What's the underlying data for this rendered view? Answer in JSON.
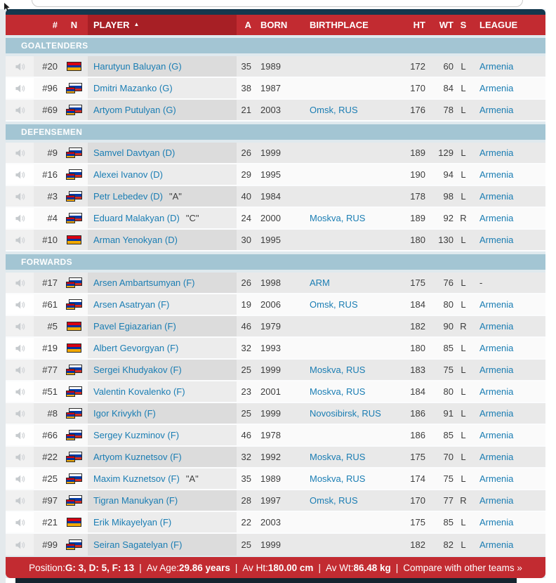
{
  "colors": {
    "header_red": "#c22b31",
    "sorted_red": "#a71f25",
    "navy": "#14384e",
    "section_blue": "#a3c5d3",
    "link_blue": "#1a7db3",
    "flag_armenia": [
      "#d90012",
      "#0033a0",
      "#f2a800"
    ],
    "flag_russia": [
      "#ffffff",
      "#0039a6",
      "#d52b1e"
    ]
  },
  "table": {
    "sort_arrow": "▲",
    "columns": [
      {
        "key": "audio",
        "label": "",
        "sorted": false,
        "interactable": false
      },
      {
        "key": "jersey",
        "label": "#",
        "sorted": false,
        "interactable": true
      },
      {
        "key": "flag",
        "label": "N",
        "sorted": false,
        "interactable": true
      },
      {
        "key": "player",
        "label": "PLAYER",
        "sorted": true,
        "interactable": true
      },
      {
        "key": "age",
        "label": "A",
        "sorted": false,
        "interactable": true
      },
      {
        "key": "born",
        "label": "BORN",
        "sorted": false,
        "interactable": true
      },
      {
        "key": "birthplace",
        "label": "BIRTHPLACE",
        "sorted": false,
        "interactable": true
      },
      {
        "key": "ht",
        "label": "HT",
        "sorted": false,
        "interactable": true
      },
      {
        "key": "wt",
        "label": "WT",
        "sorted": false,
        "interactable": true
      },
      {
        "key": "s",
        "label": "S",
        "sorted": false,
        "interactable": true
      },
      {
        "key": "league",
        "label": "LEAGUE",
        "sorted": false,
        "interactable": true
      }
    ],
    "sections": [
      {
        "label": "GOALTENDERS",
        "rows": [
          {
            "jersey": "#20",
            "flags": [
              "arm"
            ],
            "name": "Harutyun Baluyan (G)",
            "captaincy": "",
            "age": "35",
            "born": "1989",
            "birthplace": "",
            "ht": "172",
            "wt": "60",
            "s": "L",
            "league": "Armenia"
          },
          {
            "jersey": "#96",
            "flags": [
              "rus",
              "arm"
            ],
            "name": "Dmitri Mazanko (G)",
            "captaincy": "",
            "age": "38",
            "born": "1987",
            "birthplace": "",
            "ht": "170",
            "wt": "84",
            "s": "L",
            "league": "Armenia"
          },
          {
            "jersey": "#69",
            "flags": [
              "rus",
              "arm"
            ],
            "name": "Artyom Putulyan (G)",
            "captaincy": "",
            "age": "21",
            "born": "2003",
            "birthplace": "Omsk, RUS",
            "ht": "176",
            "wt": "78",
            "s": "L",
            "league": "Armenia"
          }
        ]
      },
      {
        "label": "DEFENSEMEN",
        "rows": [
          {
            "jersey": "#9",
            "flags": [
              "rus",
              "arm"
            ],
            "name": "Samvel Davtyan (D)",
            "captaincy": "",
            "age": "26",
            "born": "1999",
            "birthplace": "",
            "ht": "189",
            "wt": "129",
            "s": "L",
            "league": "Armenia"
          },
          {
            "jersey": "#16",
            "flags": [
              "rus",
              "arm"
            ],
            "name": "Alexei Ivanov (D)",
            "captaincy": "",
            "age": "29",
            "born": "1995",
            "birthplace": "",
            "ht": "190",
            "wt": "94",
            "s": "L",
            "league": "Armenia"
          },
          {
            "jersey": "#3",
            "flags": [
              "rus",
              "arm"
            ],
            "name": "Petr Lebedev (D)",
            "captaincy": "\"A\"",
            "age": "40",
            "born": "1984",
            "birthplace": "",
            "ht": "178",
            "wt": "98",
            "s": "L",
            "league": "Armenia"
          },
          {
            "jersey": "#4",
            "flags": [
              "rus",
              "arm"
            ],
            "name": "Eduard Malakyan (D)",
            "captaincy": "\"C\"",
            "age": "24",
            "born": "2000",
            "birthplace": "Moskva, RUS",
            "ht": "189",
            "wt": "92",
            "s": "R",
            "league": "Armenia"
          },
          {
            "jersey": "#10",
            "flags": [
              "arm"
            ],
            "name": "Arman Yenokyan (D)",
            "captaincy": "",
            "age": "30",
            "born": "1995",
            "birthplace": "",
            "ht": "180",
            "wt": "130",
            "s": "L",
            "league": "Armenia"
          }
        ]
      },
      {
        "label": "FORWARDS",
        "rows": [
          {
            "jersey": "#17",
            "flags": [
              "rus",
              "arm"
            ],
            "name": "Arsen Ambartsumyan (F)",
            "captaincy": "",
            "age": "26",
            "born": "1998",
            "birthplace": "ARM",
            "ht": "175",
            "wt": "76",
            "s": "L",
            "league": "-"
          },
          {
            "jersey": "#61",
            "flags": [
              "rus",
              "arm"
            ],
            "name": "Arsen Asatryan (F)",
            "captaincy": "",
            "age": "19",
            "born": "2006",
            "birthplace": "Omsk, RUS",
            "ht": "184",
            "wt": "80",
            "s": "L",
            "league": "Armenia"
          },
          {
            "jersey": "#5",
            "flags": [
              "arm"
            ],
            "name": "Pavel Egiazarian (F)",
            "captaincy": "",
            "age": "46",
            "born": "1979",
            "birthplace": "",
            "ht": "182",
            "wt": "90",
            "s": "R",
            "league": "Armenia"
          },
          {
            "jersey": "#19",
            "flags": [
              "arm"
            ],
            "name": "Albert Gevorgyan (F)",
            "captaincy": "",
            "age": "32",
            "born": "1993",
            "birthplace": "",
            "ht": "180",
            "wt": "85",
            "s": "L",
            "league": "Armenia"
          },
          {
            "jersey": "#77",
            "flags": [
              "rus",
              "arm"
            ],
            "name": "Sergei Khudyakov (F)",
            "captaincy": "",
            "age": "25",
            "born": "1999",
            "birthplace": "Moskva, RUS",
            "ht": "183",
            "wt": "75",
            "s": "L",
            "league": "Armenia"
          },
          {
            "jersey": "#51",
            "flags": [
              "rus",
              "arm"
            ],
            "name": "Valentin Kovalenko (F)",
            "captaincy": "",
            "age": "23",
            "born": "2001",
            "birthplace": "Moskva, RUS",
            "ht": "184",
            "wt": "80",
            "s": "L",
            "league": "Armenia"
          },
          {
            "jersey": "#8",
            "flags": [
              "rus",
              "arm"
            ],
            "name": "Igor Krivykh (F)",
            "captaincy": "",
            "age": "25",
            "born": "1999",
            "birthplace": "Novosibirsk, RUS",
            "ht": "186",
            "wt": "91",
            "s": "L",
            "league": "Armenia"
          },
          {
            "jersey": "#66",
            "flags": [
              "rus",
              "arm"
            ],
            "name": "Sergey Kuzminov (F)",
            "captaincy": "",
            "age": "46",
            "born": "1978",
            "birthplace": "",
            "ht": "186",
            "wt": "85",
            "s": "L",
            "league": "Armenia"
          },
          {
            "jersey": "#22",
            "flags": [
              "rus",
              "arm"
            ],
            "name": "Artyom Kuznetsov (F)",
            "captaincy": "",
            "age": "32",
            "born": "1992",
            "birthplace": "Moskva, RUS",
            "ht": "175",
            "wt": "70",
            "s": "L",
            "league": "Armenia"
          },
          {
            "jersey": "#25",
            "flags": [
              "rus",
              "arm"
            ],
            "name": "Maxim Kuznetsov (F)",
            "captaincy": "\"A\"",
            "age": "35",
            "born": "1989",
            "birthplace": "Moskva, RUS",
            "ht": "174",
            "wt": "75",
            "s": "L",
            "league": "Armenia"
          },
          {
            "jersey": "#97",
            "flags": [
              "rus",
              "arm"
            ],
            "name": "Tigran Manukyan (F)",
            "captaincy": "",
            "age": "28",
            "born": "1997",
            "birthplace": "Omsk, RUS",
            "ht": "170",
            "wt": "77",
            "s": "R",
            "league": "Armenia"
          },
          {
            "jersey": "#21",
            "flags": [
              "arm"
            ],
            "name": "Erik Mikayelyan (F)",
            "captaincy": "",
            "age": "22",
            "born": "2003",
            "birthplace": "",
            "ht": "175",
            "wt": "85",
            "s": "L",
            "league": "Armenia"
          },
          {
            "jersey": "#99",
            "flags": [
              "rus",
              "arm"
            ],
            "name": "Seiran Sagatelyan (F)",
            "captaincy": "",
            "age": "25",
            "born": "1999",
            "birthplace": "",
            "ht": "182",
            "wt": "82",
            "s": "L",
            "league": "Armenia"
          }
        ]
      }
    ]
  },
  "footer": {
    "segments": [
      {
        "label": "Position: ",
        "value": "G: 3, D: 5, F: 13"
      },
      {
        "label": "Av Age: ",
        "value": "29.86 years"
      },
      {
        "label": "Av Ht: ",
        "value": "180.00 cm"
      },
      {
        "label": "Av Wt: ",
        "value": "86.48 kg"
      }
    ],
    "separator": "|",
    "link_label": "Compare with other teams »"
  }
}
